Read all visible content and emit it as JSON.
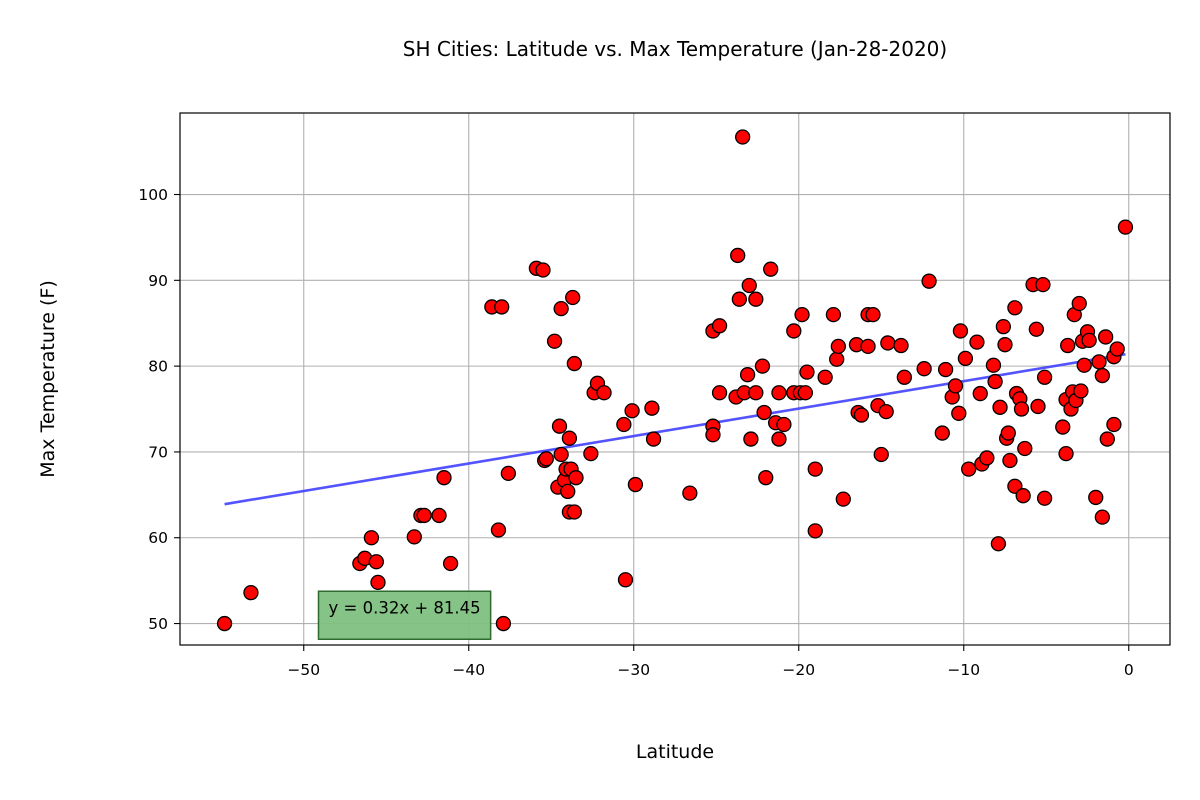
{
  "chart_data": {
    "type": "scatter",
    "title": "SH Cities: Latitude vs. Max Temperature (Jan-28-2020)",
    "xlabel": "Latitude",
    "ylabel": "Max Temperature (F)",
    "xlim": [
      -57.5,
      2.5
    ],
    "ylim": [
      47.5,
      109.5
    ],
    "xticks": [
      -50,
      -40,
      -30,
      -20,
      -10,
      0
    ],
    "xtick_labels": [
      "−50",
      "−40",
      "−30",
      "−20",
      "−10",
      "0"
    ],
    "yticks": [
      50,
      60,
      70,
      80,
      90,
      100
    ],
    "ytick_labels": [
      "50",
      "60",
      "70",
      "80",
      "90",
      "100"
    ],
    "grid": true,
    "marker_color": "#ff0000",
    "marker_edge_color": "#000000",
    "regression": {
      "slope": 0.32,
      "intercept": 81.45,
      "x_range": [
        -54.8,
        -0.2
      ],
      "color": "#4040ff",
      "equation": "y = 0.32x + 81.45",
      "box_color": "#80c080",
      "box_edge_color": "#2e6b2e",
      "anchor_x": -48.5,
      "anchor_y": 51.2
    },
    "points": [
      [
        -54.8,
        50.0
      ],
      [
        -53.2,
        53.6
      ],
      [
        -46.6,
        57.0
      ],
      [
        -46.3,
        57.6
      ],
      [
        -45.9,
        60.0
      ],
      [
        -45.6,
        57.2
      ],
      [
        -45.5,
        54.8
      ],
      [
        -43.3,
        60.1
      ],
      [
        -42.9,
        62.6
      ],
      [
        -42.7,
        62.6
      ],
      [
        -41.8,
        62.6
      ],
      [
        -41.5,
        67.0
      ],
      [
        -41.1,
        57.0
      ],
      [
        -38.6,
        86.9
      ],
      [
        -38.2,
        60.9
      ],
      [
        -38.0,
        86.9
      ],
      [
        -37.9,
        50.0
      ],
      [
        -37.6,
        67.5
      ],
      [
        -35.9,
        91.4
      ],
      [
        -35.5,
        91.2
      ],
      [
        -35.4,
        69.0
      ],
      [
        -35.3,
        69.2
      ],
      [
        -34.8,
        82.9
      ],
      [
        -34.6,
        65.9
      ],
      [
        -34.5,
        73.0
      ],
      [
        -34.4,
        69.7
      ],
      [
        -34.4,
        86.7
      ],
      [
        -34.2,
        66.7
      ],
      [
        -34.1,
        68.0
      ],
      [
        -34.0,
        65.4
      ],
      [
        -33.9,
        71.6
      ],
      [
        -33.9,
        63.0
      ],
      [
        -33.8,
        68.0
      ],
      [
        -33.7,
        88.0
      ],
      [
        -33.6,
        80.3
      ],
      [
        -33.6,
        63.0
      ],
      [
        -33.5,
        67.0
      ],
      [
        -32.6,
        69.8
      ],
      [
        -32.4,
        76.9
      ],
      [
        -32.2,
        78.0
      ],
      [
        -31.8,
        76.9
      ],
      [
        -30.6,
        73.2
      ],
      [
        -30.5,
        55.1
      ],
      [
        -30.1,
        74.8
      ],
      [
        -29.9,
        66.2
      ],
      [
        -28.9,
        75.1
      ],
      [
        -28.8,
        71.5
      ],
      [
        -26.6,
        65.2
      ],
      [
        -25.2,
        84.1
      ],
      [
        -25.2,
        73.0
      ],
      [
        -25.2,
        72.0
      ],
      [
        -24.8,
        84.7
      ],
      [
        -24.8,
        76.9
      ],
      [
        -23.8,
        76.4
      ],
      [
        -23.7,
        92.9
      ],
      [
        -23.6,
        87.8
      ],
      [
        -23.4,
        106.7
      ],
      [
        -23.3,
        76.9
      ],
      [
        -23.1,
        79.0
      ],
      [
        -23.0,
        89.4
      ],
      [
        -22.9,
        71.5
      ],
      [
        -22.6,
        87.8
      ],
      [
        -22.6,
        76.9
      ],
      [
        -22.2,
        80.0
      ],
      [
        -22.1,
        74.6
      ],
      [
        -22.0,
        67.0
      ],
      [
        -21.7,
        91.3
      ],
      [
        -21.4,
        73.4
      ],
      [
        -21.2,
        76.9
      ],
      [
        -21.2,
        71.5
      ],
      [
        -20.9,
        73.2
      ],
      [
        -20.3,
        84.1
      ],
      [
        -20.3,
        76.9
      ],
      [
        -19.9,
        76.9
      ],
      [
        -19.8,
        86.0
      ],
      [
        -19.6,
        76.9
      ],
      [
        -19.5,
        79.3
      ],
      [
        -19.0,
        68.0
      ],
      [
        -19.0,
        60.8
      ],
      [
        -18.4,
        78.7
      ],
      [
        -17.9,
        86.0
      ],
      [
        -17.7,
        80.8
      ],
      [
        -17.6,
        82.3
      ],
      [
        -17.3,
        64.5
      ],
      [
        -16.5,
        82.5
      ],
      [
        -16.4,
        74.6
      ],
      [
        -16.2,
        74.3
      ],
      [
        -15.8,
        82.3
      ],
      [
        -15.8,
        86.0
      ],
      [
        -15.5,
        86.0
      ],
      [
        -15.2,
        75.4
      ],
      [
        -15.0,
        69.7
      ],
      [
        -14.7,
        74.7
      ],
      [
        -14.6,
        82.7
      ],
      [
        -13.8,
        82.4
      ],
      [
        -13.6,
        78.7
      ],
      [
        -12.4,
        79.7
      ],
      [
        -12.1,
        89.9
      ],
      [
        -11.3,
        72.2
      ],
      [
        -11.1,
        79.6
      ],
      [
        -10.7,
        76.4
      ],
      [
        -10.5,
        77.7
      ],
      [
        -10.3,
        74.5
      ],
      [
        -10.2,
        84.1
      ],
      [
        -9.9,
        80.9
      ],
      [
        -9.7,
        68.0
      ],
      [
        -9.2,
        82.8
      ],
      [
        -9.0,
        76.8
      ],
      [
        -8.9,
        68.6
      ],
      [
        -8.6,
        69.3
      ],
      [
        -8.2,
        80.1
      ],
      [
        -8.1,
        78.2
      ],
      [
        -7.9,
        59.3
      ],
      [
        -7.8,
        75.2
      ],
      [
        -7.6,
        84.6
      ],
      [
        -7.5,
        82.5
      ],
      [
        -7.4,
        71.6
      ],
      [
        -7.3,
        72.2
      ],
      [
        -7.2,
        69.0
      ],
      [
        -6.9,
        86.8
      ],
      [
        -6.9,
        66.0
      ],
      [
        -6.8,
        76.8
      ],
      [
        -6.6,
        76.2
      ],
      [
        -6.5,
        75.0
      ],
      [
        -6.4,
        64.9
      ],
      [
        -6.3,
        70.4
      ],
      [
        -5.8,
        89.5
      ],
      [
        -5.6,
        84.3
      ],
      [
        -5.5,
        75.3
      ],
      [
        -5.2,
        89.5
      ],
      [
        -5.1,
        78.7
      ],
      [
        -5.1,
        64.6
      ],
      [
        -4.0,
        72.9
      ],
      [
        -3.8,
        69.8
      ],
      [
        -3.8,
        76.1
      ],
      [
        -3.7,
        82.4
      ],
      [
        -3.5,
        75.0
      ],
      [
        -3.4,
        77.0
      ],
      [
        -3.3,
        86.0
      ],
      [
        -3.2,
        76.0
      ],
      [
        -3.0,
        87.3
      ],
      [
        -2.9,
        77.1
      ],
      [
        -2.8,
        82.9
      ],
      [
        -2.7,
        80.1
      ],
      [
        -2.5,
        84.0
      ],
      [
        -2.4,
        83.0
      ],
      [
        -2.0,
        64.7
      ],
      [
        -1.8,
        80.5
      ],
      [
        -1.6,
        62.4
      ],
      [
        -1.6,
        78.9
      ],
      [
        -1.4,
        83.4
      ],
      [
        -1.3,
        71.5
      ],
      [
        -0.9,
        73.2
      ],
      [
        -0.9,
        81.1
      ],
      [
        -0.7,
        82.0
      ],
      [
        -0.2,
        96.2
      ]
    ]
  }
}
